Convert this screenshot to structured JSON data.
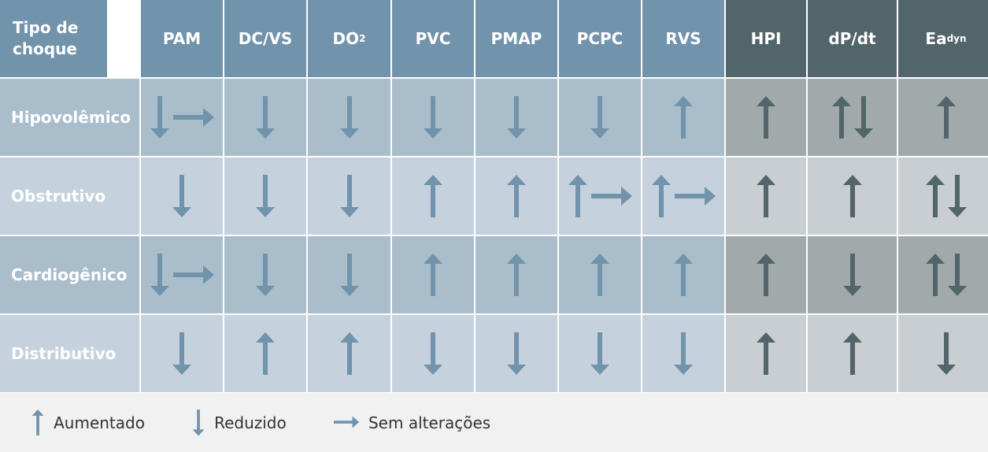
{
  "colors": {
    "header": "#7193ab",
    "header_dark": "#52656b",
    "arrow": "#7193ab",
    "arrow_dark": "#52656b"
  },
  "header": {
    "first": "Tipo de choque",
    "columns": [
      {
        "label": "PAM",
        "sub": ""
      },
      {
        "label": "DC/VS",
        "sub": ""
      },
      {
        "label": "DO",
        "sub": "2"
      },
      {
        "label": "PVC",
        "sub": ""
      },
      {
        "label": "PMAP",
        "sub": ""
      },
      {
        "label": "PCPC",
        "sub": ""
      },
      {
        "label": "RVS",
        "sub": ""
      },
      {
        "label": "HPI",
        "sub": ""
      },
      {
        "label": "dP/dt",
        "sub": ""
      },
      {
        "label": "Ea",
        "sub": "dyn"
      }
    ]
  },
  "rows": [
    {
      "label": "Hipovolêmico",
      "cells": [
        [
          "down",
          "right"
        ],
        [
          "down"
        ],
        [
          "down"
        ],
        [
          "down"
        ],
        [
          "down"
        ],
        [
          "down"
        ],
        [
          "up"
        ],
        [
          "up"
        ],
        [
          "up",
          "down"
        ],
        [
          "up"
        ]
      ]
    },
    {
      "label": "Obstrutivo",
      "cells": [
        [
          "down"
        ],
        [
          "down"
        ],
        [
          "down"
        ],
        [
          "up"
        ],
        [
          "up"
        ],
        [
          "up",
          "right"
        ],
        [
          "up",
          "right"
        ],
        [
          "up"
        ],
        [
          "up"
        ],
        [
          "up",
          "down"
        ]
      ]
    },
    {
      "label": "Cardiogênico",
      "cells": [
        [
          "down",
          "right"
        ],
        [
          "down"
        ],
        [
          "down"
        ],
        [
          "up"
        ],
        [
          "up"
        ],
        [
          "up"
        ],
        [
          "up"
        ],
        [
          "up"
        ],
        [
          "down"
        ],
        [
          "up",
          "down"
        ]
      ]
    },
    {
      "label": "Distributivo",
      "cells": [
        [
          "down"
        ],
        [
          "up"
        ],
        [
          "up"
        ],
        [
          "down"
        ],
        [
          "down"
        ],
        [
          "down"
        ],
        [
          "down"
        ],
        [
          "up"
        ],
        [
          "up"
        ],
        [
          "down"
        ]
      ]
    }
  ],
  "legend": [
    {
      "icon": "up",
      "label": "Aumentado"
    },
    {
      "icon": "down",
      "label": "Reduzido"
    },
    {
      "icon": "right",
      "label": "Sem alterações"
    }
  ]
}
